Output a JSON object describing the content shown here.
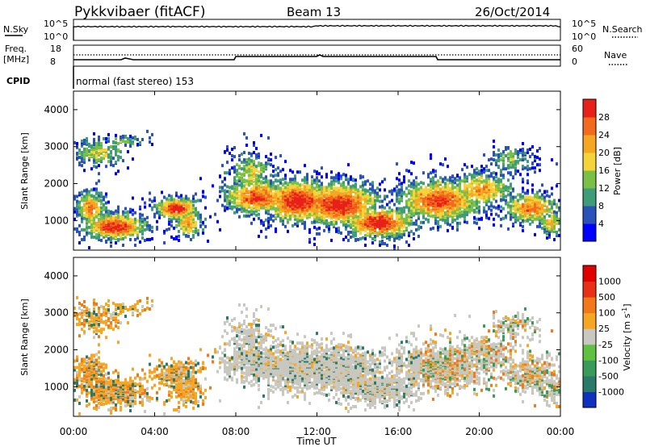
{
  "header": {
    "station": "Pykkvibaer (fitACF)",
    "beam": "Beam 13",
    "date": "26/Oct/2014"
  },
  "top_panels": {
    "nsky_label": "N.Sky",
    "nsky_ticks": [
      "10^5",
      "10^0"
    ],
    "nsearch_label": "N.Search",
    "nsearch_ticks": [
      "10^5",
      "10^0"
    ],
    "freq_label": "Freq.",
    "freq_unit": "[MHz]",
    "freq_ticks": [
      "18",
      "8"
    ],
    "nave_label": "Nave",
    "nave_ticks": [
      "60",
      "0"
    ],
    "cpid_label": "CPID",
    "cpid_value": "normal (fast stereo) 153"
  },
  "chart_data": [
    {
      "type": "heatmap",
      "name": "power",
      "ylabel": "Slant Range [km]",
      "yticks": [
        "4000",
        "3000",
        "2000",
        "1000"
      ],
      "ylim": [
        200,
        4500
      ],
      "colorbar_label": "Power [dB]",
      "colorbar_ticks": [
        "28",
        "24",
        "20",
        "16",
        "12",
        "8",
        "4"
      ],
      "colors": [
        "#0000ff",
        "#2a52b8",
        "#3e9c78",
        "#79c046",
        "#f5d33a",
        "#f5a623",
        "#f26b1d",
        "#e8201a"
      ]
    },
    {
      "type": "heatmap",
      "name": "velocity",
      "ylabel": "Slant Range [km]",
      "yticks": [
        "4000",
        "3000",
        "2000",
        "1000"
      ],
      "ylim": [
        200,
        4500
      ],
      "colorbar_label": "Velocity [m s^-1]",
      "colorbar_ticks": [
        "1000",
        "500",
        "100",
        "25",
        "-25",
        "-100",
        "-500",
        "-1000"
      ],
      "colors": [
        "#1030c0",
        "#2a7a6a",
        "#3a9a5a",
        "#60c040",
        "#c8c8c0",
        "#f5a623",
        "#f07a1a",
        "#e83018",
        "#e00000"
      ]
    }
  ],
  "xaxis": {
    "label": "Time UT",
    "ticks": [
      "00:00",
      "04:00",
      "08:00",
      "12:00",
      "16:00",
      "20:00",
      "00:00"
    ]
  }
}
